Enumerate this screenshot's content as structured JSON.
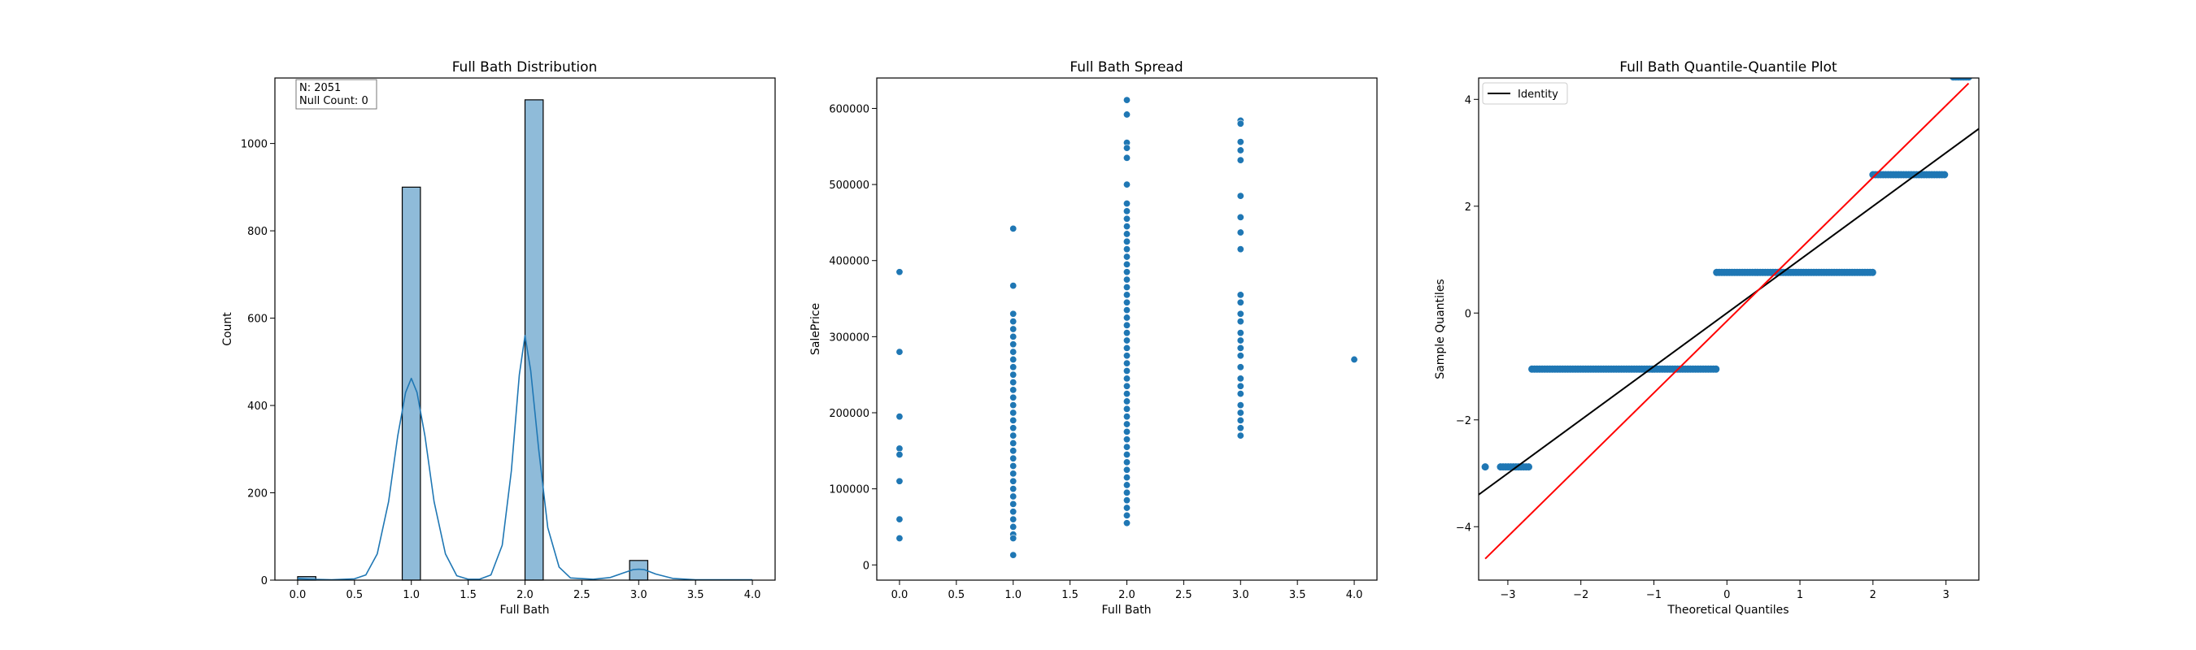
{
  "colors": {
    "bar_fill": "#1f77b4",
    "bar_fill_opacity": 0.5,
    "point": "#1f77b4",
    "kde_line": "#1f77b4",
    "identity_line": "#000000",
    "fit_line": "#ff0000"
  },
  "chart_data": [
    {
      "type": "bar",
      "title": "Full Bath Distribution",
      "xlabel": "Full Bath",
      "ylabel": "Count",
      "xlim": [
        -0.2,
        4.2
      ],
      "ylim": [
        0,
        1150
      ],
      "xticks": [
        "0.0",
        "0.5",
        "1.0",
        "1.5",
        "2.0",
        "2.5",
        "3.0",
        "3.5",
        "4.0"
      ],
      "yticks": [
        "0",
        "200",
        "400",
        "600",
        "800",
        "1000"
      ],
      "grid": false,
      "annotation": [
        "N: 2051",
        "Null Count: 0"
      ],
      "annotation_position": "top-left",
      "bins": [
        {
          "x0": 0.0,
          "x1": 0.16,
          "count": 8
        },
        {
          "x0": 0.92,
          "x1": 1.08,
          "count": 900
        },
        {
          "x0": 2.0,
          "x1": 2.16,
          "count": 1100
        },
        {
          "x0": 2.92,
          "x1": 3.08,
          "count": 45
        }
      ],
      "kde": [
        [
          0.0,
          4
        ],
        [
          0.1,
          2
        ],
        [
          0.3,
          1
        ],
        [
          0.5,
          3
        ],
        [
          0.6,
          12
        ],
        [
          0.7,
          60
        ],
        [
          0.8,
          180
        ],
        [
          0.88,
          330
        ],
        [
          0.95,
          430
        ],
        [
          1.0,
          462
        ],
        [
          1.05,
          430
        ],
        [
          1.12,
          330
        ],
        [
          1.2,
          180
        ],
        [
          1.3,
          60
        ],
        [
          1.4,
          10
        ],
        [
          1.5,
          2
        ],
        [
          1.6,
          2
        ],
        [
          1.7,
          12
        ],
        [
          1.8,
          80
        ],
        [
          1.88,
          250
        ],
        [
          1.95,
          470
        ],
        [
          2.0,
          560
        ],
        [
          2.05,
          480
        ],
        [
          2.12,
          300
        ],
        [
          2.2,
          120
        ],
        [
          2.3,
          30
        ],
        [
          2.4,
          5
        ],
        [
          2.6,
          2
        ],
        [
          2.75,
          6
        ],
        [
          2.85,
          15
        ],
        [
          2.95,
          24
        ],
        [
          3.0,
          25
        ],
        [
          3.05,
          24
        ],
        [
          3.15,
          14
        ],
        [
          3.3,
          4
        ],
        [
          3.5,
          1
        ],
        [
          4.0,
          1
        ]
      ]
    },
    {
      "type": "scatter",
      "title": "Full Bath Spread",
      "xlabel": "Full Bath",
      "ylabel": "SalePrice",
      "xlim": [
        -0.2,
        4.2
      ],
      "ylim": [
        -20000,
        640000
      ],
      "xticks": [
        "0.0",
        "0.5",
        "1.0",
        "1.5",
        "2.0",
        "2.5",
        "3.0",
        "3.5",
        "4.0"
      ],
      "yticks": [
        "0",
        "100000",
        "200000",
        "300000",
        "400000",
        "500000",
        "600000"
      ],
      "grid": false,
      "points": [
        [
          0,
          385000
        ],
        [
          0,
          280000
        ],
        [
          0,
          195000
        ],
        [
          0,
          153000
        ],
        [
          0,
          145000
        ],
        [
          0,
          110000
        ],
        [
          0,
          60000
        ],
        [
          0,
          35000
        ],
        [
          1,
          442000
        ],
        [
          1,
          367000
        ],
        [
          1,
          330000
        ],
        [
          1,
          320000
        ],
        [
          1,
          310000
        ],
        [
          1,
          300000
        ],
        [
          1,
          290000
        ],
        [
          1,
          280000
        ],
        [
          1,
          270000
        ],
        [
          1,
          260000
        ],
        [
          1,
          250000
        ],
        [
          1,
          240000
        ],
        [
          1,
          230000
        ],
        [
          1,
          220000
        ],
        [
          1,
          210000
        ],
        [
          1,
          200000
        ],
        [
          1,
          190000
        ],
        [
          1,
          180000
        ],
        [
          1,
          170000
        ],
        [
          1,
          160000
        ],
        [
          1,
          150000
        ],
        [
          1,
          140000
        ],
        [
          1,
          130000
        ],
        [
          1,
          120000
        ],
        [
          1,
          110000
        ],
        [
          1,
          100000
        ],
        [
          1,
          90000
        ],
        [
          1,
          80000
        ],
        [
          1,
          70000
        ],
        [
          1,
          60000
        ],
        [
          1,
          50000
        ],
        [
          1,
          40000
        ],
        [
          1,
          35000
        ],
        [
          1,
          13000
        ],
        [
          2,
          611000
        ],
        [
          2,
          592000
        ],
        [
          2,
          555000
        ],
        [
          2,
          548000
        ],
        [
          2,
          535000
        ],
        [
          2,
          500000
        ],
        [
          2,
          475000
        ],
        [
          2,
          465000
        ],
        [
          2,
          455000
        ],
        [
          2,
          445000
        ],
        [
          2,
          435000
        ],
        [
          2,
          425000
        ],
        [
          2,
          415000
        ],
        [
          2,
          405000
        ],
        [
          2,
          395000
        ],
        [
          2,
          385000
        ],
        [
          2,
          375000
        ],
        [
          2,
          365000
        ],
        [
          2,
          355000
        ],
        [
          2,
          345000
        ],
        [
          2,
          335000
        ],
        [
          2,
          325000
        ],
        [
          2,
          315000
        ],
        [
          2,
          305000
        ],
        [
          2,
          295000
        ],
        [
          2,
          285000
        ],
        [
          2,
          275000
        ],
        [
          2,
          265000
        ],
        [
          2,
          255000
        ],
        [
          2,
          245000
        ],
        [
          2,
          235000
        ],
        [
          2,
          225000
        ],
        [
          2,
          215000
        ],
        [
          2,
          205000
        ],
        [
          2,
          195000
        ],
        [
          2,
          185000
        ],
        [
          2,
          175000
        ],
        [
          2,
          165000
        ],
        [
          2,
          155000
        ],
        [
          2,
          145000
        ],
        [
          2,
          135000
        ],
        [
          2,
          125000
        ],
        [
          2,
          115000
        ],
        [
          2,
          105000
        ],
        [
          2,
          95000
        ],
        [
          2,
          85000
        ],
        [
          2,
          75000
        ],
        [
          2,
          65000
        ],
        [
          2,
          55000
        ],
        [
          3,
          584000
        ],
        [
          3,
          580000
        ],
        [
          3,
          556000
        ],
        [
          3,
          545000
        ],
        [
          3,
          532000
        ],
        [
          3,
          485000
        ],
        [
          3,
          457000
        ],
        [
          3,
          437000
        ],
        [
          3,
          415000
        ],
        [
          3,
          355000
        ],
        [
          3,
          345000
        ],
        [
          3,
          330000
        ],
        [
          3,
          320000
        ],
        [
          3,
          305000
        ],
        [
          3,
          295000
        ],
        [
          3,
          285000
        ],
        [
          3,
          275000
        ],
        [
          3,
          260000
        ],
        [
          3,
          245000
        ],
        [
          3,
          235000
        ],
        [
          3,
          225000
        ],
        [
          3,
          210000
        ],
        [
          3,
          200000
        ],
        [
          3,
          190000
        ],
        [
          3,
          180000
        ],
        [
          3,
          170000
        ],
        [
          4,
          270000
        ]
      ]
    },
    {
      "type": "scatter",
      "title": "Full Bath Quantile-Quantile Plot",
      "xlabel": "Theoretical Quantiles",
      "ylabel": "Sample Quantiles",
      "xlim": [
        -3.4,
        3.45
      ],
      "ylim": [
        -5.0,
        4.4
      ],
      "xticks": [
        -3,
        -2,
        -1,
        0,
        1,
        2,
        3
      ],
      "yticks": [
        -4,
        -2,
        0,
        2,
        4
      ],
      "grid": false,
      "legend": [
        {
          "label": "Identity",
          "color": "#000000"
        }
      ],
      "legend_position": "top-left",
      "groups": [
        {
          "y": -2.88,
          "x_from": -3.1,
          "x_to": -2.7,
          "isolated": [
            -3.31
          ]
        },
        {
          "y": -1.05,
          "x_from": -2.67,
          "x_to": -0.14
        },
        {
          "y": 0.76,
          "x_from": -0.14,
          "x_to": 2.0
        },
        {
          "y": 2.59,
          "x_from": 2.0,
          "x_to": 2.98
        },
        {
          "y": 4.42,
          "x_from": 3.1,
          "x_to": 3.31
        }
      ],
      "lines": [
        {
          "name": "Identity",
          "color": "#000000",
          "x": [
            -3.4,
            3.45
          ],
          "y": [
            -3.4,
            3.45
          ]
        },
        {
          "name": "",
          "color": "#ff0000",
          "x": [
            -3.31,
            3.31
          ],
          "y": [
            -4.6,
            4.3
          ]
        }
      ]
    }
  ]
}
